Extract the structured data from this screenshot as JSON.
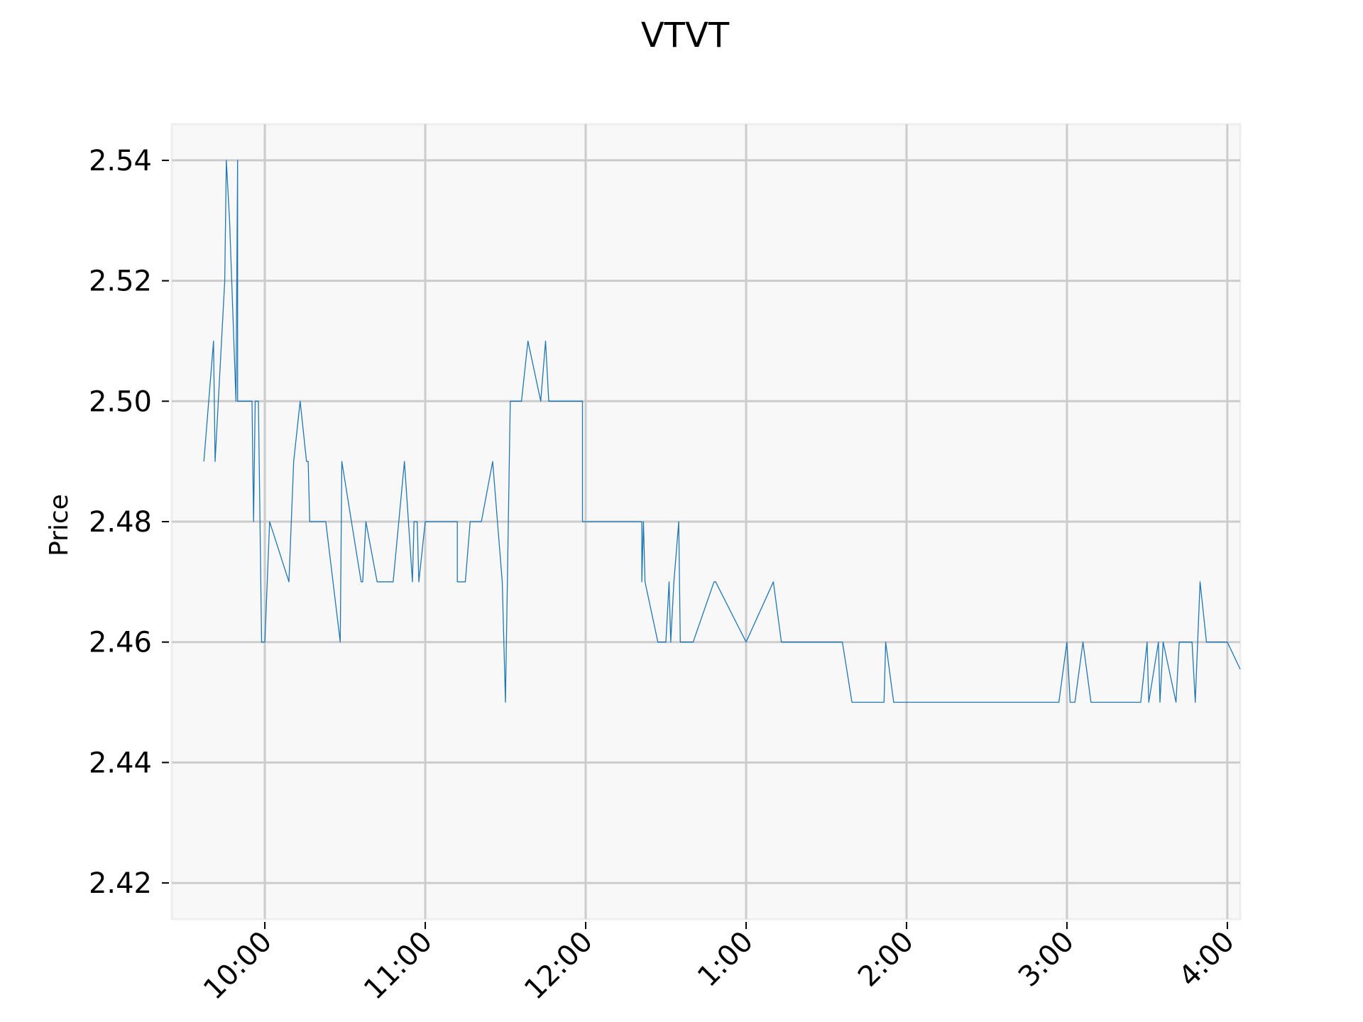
{
  "chart_data": {
    "type": "line",
    "title": "VTVT",
    "xlabel": "",
    "ylabel": "Price",
    "x_tick_labels": [
      "10:00",
      "11:00",
      "12:00",
      "1:00",
      "2:00",
      "3:00",
      "4:00"
    ],
    "x_tick_hours": [
      10,
      11,
      12,
      13,
      14,
      15,
      16
    ],
    "y_tick_labels": [
      "2.42",
      "2.44",
      "2.46",
      "2.48",
      "2.50",
      "2.52",
      "2.54"
    ],
    "y_ticks": [
      2.42,
      2.44,
      2.46,
      2.48,
      2.5,
      2.52,
      2.54
    ],
    "xlim": [
      9.42,
      16.08
    ],
    "ylim": [
      2.414,
      2.546
    ],
    "grid": true,
    "colors": {
      "line": "#1f77b4",
      "plot_background": "#f8f8f8",
      "grid": "#cccccc",
      "frame": "#eeeeee"
    },
    "series": [
      {
        "x": [
          9.62,
          9.68,
          9.69,
          9.75,
          9.76,
          9.78,
          9.82,
          9.83,
          9.83,
          9.92,
          9.93,
          9.94,
          9.95,
          9.96,
          9.98,
          10.0,
          10.03,
          10.15,
          10.18,
          10.22,
          10.26,
          10.27,
          10.28,
          10.38,
          10.47,
          10.48,
          10.6,
          10.61,
          10.63,
          10.7,
          10.8,
          10.87,
          10.92,
          10.93,
          10.95,
          10.96,
          11.0,
          11.2,
          11.2,
          11.25,
          11.28,
          11.35,
          11.42,
          11.48,
          11.5,
          11.53,
          11.6,
          11.64,
          11.72,
          11.75,
          11.77,
          11.98,
          11.98,
          12.35,
          12.35,
          12.36,
          12.37,
          12.45,
          12.5,
          12.52,
          12.53,
          12.55,
          12.58,
          12.59,
          12.6,
          12.67,
          12.8,
          12.81,
          13.0,
          13.17,
          13.22,
          13.6,
          13.66,
          13.86,
          13.87,
          13.92,
          14.95,
          15.0,
          15.02,
          15.05,
          15.1,
          15.15,
          15.46,
          15.5,
          15.51,
          15.57,
          15.58,
          15.6,
          15.68,
          15.7,
          15.78,
          15.8,
          15.83,
          15.87,
          15.88,
          15.92,
          16.0,
          16.08
        ],
        "y": [
          2.49,
          2.51,
          2.49,
          2.52,
          2.54,
          2.53,
          2.5,
          2.54,
          2.5,
          2.5,
          2.48,
          2.5,
          2.5,
          2.5,
          2.46,
          2.46,
          2.48,
          2.47,
          2.49,
          2.5,
          2.49,
          2.49,
          2.48,
          2.48,
          2.46,
          2.49,
          2.47,
          2.47,
          2.48,
          2.47,
          2.47,
          2.49,
          2.47,
          2.48,
          2.48,
          2.47,
          2.48,
          2.48,
          2.47,
          2.47,
          2.48,
          2.48,
          2.49,
          2.47,
          2.45,
          2.5,
          2.5,
          2.51,
          2.5,
          2.51,
          2.5,
          2.5,
          2.48,
          2.48,
          2.47,
          2.48,
          2.47,
          2.46,
          2.46,
          2.47,
          2.46,
          2.47,
          2.48,
          2.46,
          2.46,
          2.46,
          2.47,
          2.47,
          2.46,
          2.47,
          2.46,
          2.46,
          2.45,
          2.45,
          2.46,
          2.45,
          2.45,
          2.46,
          2.45,
          2.45,
          2.46,
          2.45,
          2.45,
          2.46,
          2.45,
          2.46,
          2.45,
          2.46,
          2.45,
          2.46,
          2.46,
          2.45,
          2.47,
          2.46,
          2.46,
          2.46,
          2.46,
          2.4555
        ]
      }
    ]
  }
}
